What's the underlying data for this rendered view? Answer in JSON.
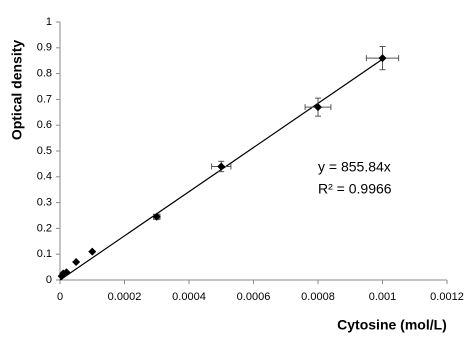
{
  "chart_data": {
    "type": "scatter",
    "x_label": "Cytosine (mol/L)",
    "y_label": "Optical density",
    "x": [
      5e-06,
      1e-05,
      2e-05,
      5e-05,
      0.0001,
      0.0003,
      0.0005,
      0.0008,
      0.001
    ],
    "values": [
      0.015,
      0.025,
      0.03,
      0.07,
      0.11,
      0.245,
      0.44,
      0.67,
      0.86
    ],
    "y_errors": [
      0,
      0,
      0,
      0,
      0,
      0.01,
      0.02,
      0.035,
      0.045
    ],
    "x_errors": [
      0,
      0,
      0,
      0,
      0,
      1e-05,
      3e-05,
      4e-05,
      5e-05
    ],
    "color": "#000000",
    "trendline": {
      "slope": 855.84
    },
    "annotations": [
      "y = 855.84x",
      "R² = 0.9966"
    ],
    "xlim": [
      0,
      0.0012
    ],
    "xticks": [
      0,
      0.0002,
      0.0004,
      0.0006,
      0.0008,
      0.001,
      0.0012
    ],
    "ylim": [
      0,
      1
    ],
    "yticks": [
      0,
      0.1,
      0.2,
      0.3,
      0.4,
      0.5,
      0.6,
      0.7,
      0.8,
      0.9,
      1
    ]
  }
}
